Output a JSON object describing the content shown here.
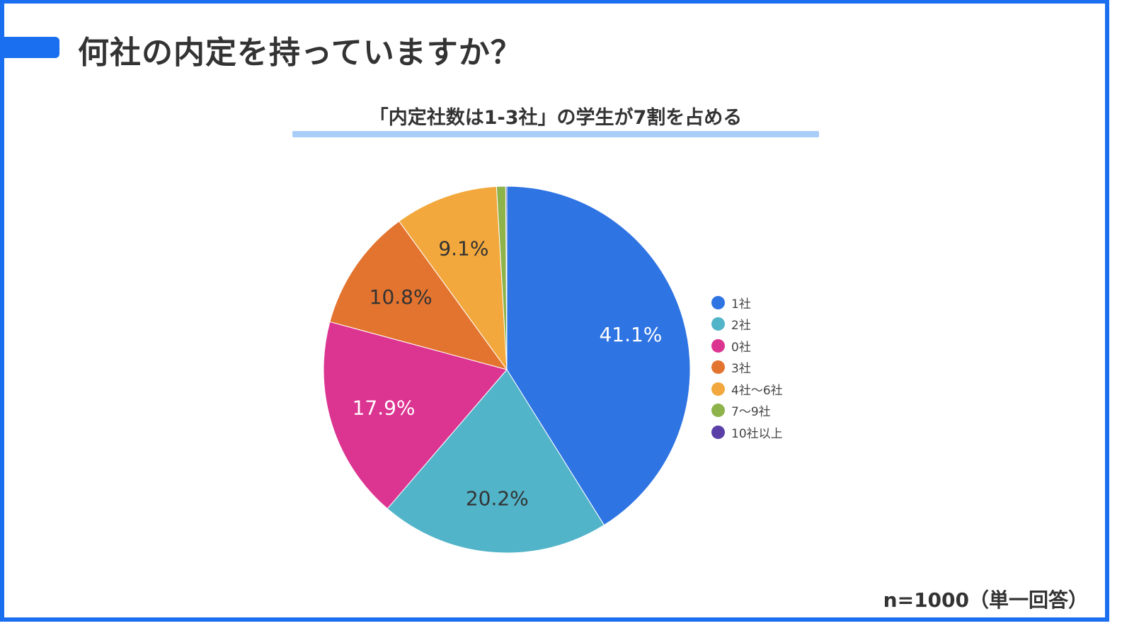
{
  "page": {
    "title": "何社の内定を持っていますか？",
    "note": "n=1000（単一回答）"
  },
  "chart_data": {
    "type": "pie",
    "title": "「内定社数は1-3社」の学生が7割を占める",
    "legend_position": "right",
    "slices": [
      {
        "label": "1社",
        "value": 41.1,
        "display": "41.1%",
        "color": "#2f74e3",
        "text_color": "#ffffff"
      },
      {
        "label": "2社",
        "value": 20.2,
        "display": "20.2%",
        "color": "#52b4c9",
        "text_color": "#333333"
      },
      {
        "label": "0社",
        "value": 17.9,
        "display": "17.9%",
        "color": "#dc3491",
        "text_color": "#ffffff"
      },
      {
        "label": "3社",
        "value": 10.8,
        "display": "10.8%",
        "color": "#e3742f",
        "text_color": "#333333"
      },
      {
        "label": "4社〜6社",
        "value": 9.1,
        "display": "9.1%",
        "color": "#f2a83c",
        "text_color": "#333333"
      },
      {
        "label": "7〜9社",
        "value": 0.8,
        "display": "",
        "color": "#8db34a",
        "text_color": "#333333"
      },
      {
        "label": "10社以上",
        "value": 0.1,
        "display": "",
        "color": "#5a3fa8",
        "text_color": "#333333"
      }
    ]
  }
}
